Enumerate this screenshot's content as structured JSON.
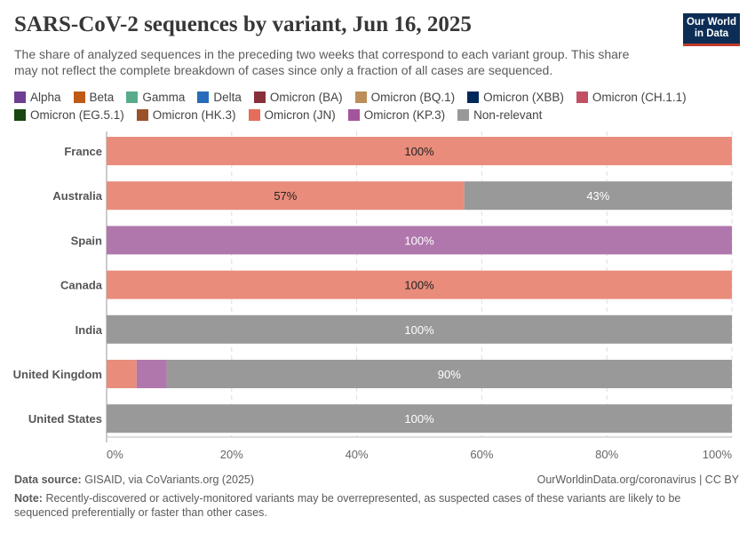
{
  "header": {
    "title": "SARS-CoV-2 sequences by variant, Jun 16, 2025",
    "subtitle": "The share of analyzed sequences in the preceding two weeks that correspond to each variant group. This share may not reflect the complete breakdown of cases since only a fraction of all cases are sequenced.",
    "logo_line1": "Our World",
    "logo_line2": "in Data"
  },
  "footer": {
    "source_label": "Data source:",
    "source_text": "GISAID, via CoVariants.org (2025)",
    "url_text": "OurWorldinData.org/coronavirus | CC BY",
    "note_label": "Note:",
    "note_text": "Recently-discovered or actively-monitored variants may be overrepresented, as suspected cases of these variants are likely to be sequenced preferentially or faster than other cases."
  },
  "chart_data": {
    "type": "bar",
    "orientation": "horizontal",
    "stacked": true,
    "categories": [
      "France",
      "Australia",
      "Spain",
      "Canada",
      "India",
      "United Kingdom",
      "United States"
    ],
    "xlim": [
      0,
      100
    ],
    "x_ticks": [
      "0%",
      "20%",
      "40%",
      "60%",
      "80%",
      "100%"
    ],
    "grid": true,
    "legend_placement": "top",
    "legend": [
      {
        "name": "Alpha",
        "color": "#6d3e91"
      },
      {
        "name": "Beta",
        "color": "#c05917"
      },
      {
        "name": "Gamma",
        "color": "#58ac8c"
      },
      {
        "name": "Delta",
        "color": "#286bbb"
      },
      {
        "name": "Omicron (BA)",
        "color": "#883039"
      },
      {
        "name": "Omicron (BQ.1)",
        "color": "#bc8e5a"
      },
      {
        "name": "Omicron (XBB)",
        "color": "#00295b"
      },
      {
        "name": "Omicron (CH.1.1)",
        "color": "#c15065"
      },
      {
        "name": "Omicron (EG.5.1)",
        "color": "#18470f"
      },
      {
        "name": "Omicron (HK.3)",
        "color": "#9a5129"
      },
      {
        "name": "Omicron (JN)",
        "color": "#e56e5a"
      },
      {
        "name": "Omicron (KP.3)",
        "color": "#a2559c"
      },
      {
        "name": "Non-relevant",
        "color": "#999999"
      }
    ],
    "series": [
      {
        "name": "Omicron (JN)",
        "color": "#e98c7b",
        "values": [
          100,
          57.2,
          0,
          100,
          0,
          4.8,
          0
        ],
        "labels": [
          "100%",
          "57%",
          "",
          "100%",
          "",
          "",
          ""
        ],
        "label_color": "#222222"
      },
      {
        "name": "Omicron (KP.3)",
        "color": "#b077ad",
        "values": [
          0,
          0,
          100,
          0,
          0,
          4.8,
          0
        ],
        "labels": [
          "",
          "",
          "100%",
          "",
          "",
          "",
          ""
        ],
        "label_color": "#ffffff"
      },
      {
        "name": "Non-relevant",
        "color": "#999999",
        "values": [
          0,
          42.8,
          0,
          0,
          100,
          90.4,
          100
        ],
        "labels": [
          "",
          "43%",
          "",
          "",
          "100%",
          "90%",
          "100%"
        ],
        "label_color": "#ffffff"
      }
    ]
  }
}
